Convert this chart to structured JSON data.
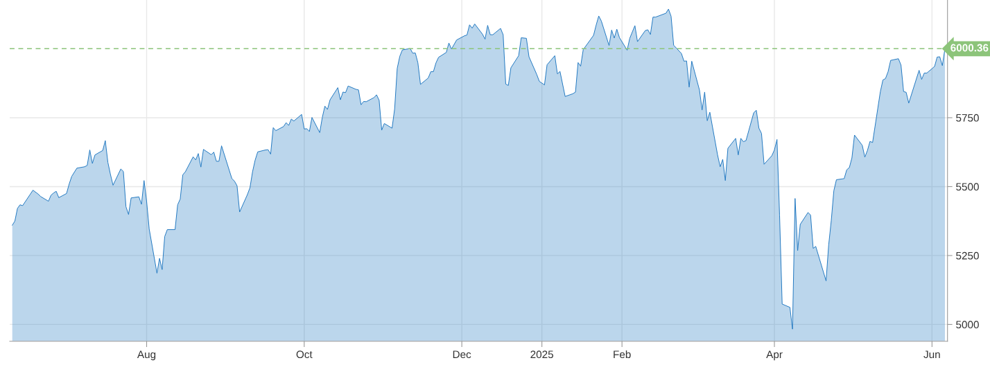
{
  "chart_data": {
    "type": "area",
    "x": [
      "2024-06-10",
      "2024-06-11",
      "2024-06-12",
      "2024-06-13",
      "2024-06-14",
      "2024-06-17",
      "2024-06-18",
      "2024-06-20",
      "2024-06-21",
      "2024-06-24",
      "2024-06-25",
      "2024-06-26",
      "2024-06-27",
      "2024-06-28",
      "2024-07-01",
      "2024-07-02",
      "2024-07-03",
      "2024-07-05",
      "2024-07-08",
      "2024-07-09",
      "2024-07-10",
      "2024-07-11",
      "2024-07-12",
      "2024-07-15",
      "2024-07-16",
      "2024-07-17",
      "2024-07-18",
      "2024-07-19",
      "2024-07-22",
      "2024-07-23",
      "2024-07-24",
      "2024-07-25",
      "2024-07-26",
      "2024-07-29",
      "2024-07-30",
      "2024-07-31",
      "2024-08-01",
      "2024-08-02",
      "2024-08-05",
      "2024-08-06",
      "2024-08-07",
      "2024-08-08",
      "2024-08-09",
      "2024-08-12",
      "2024-08-13",
      "2024-08-14",
      "2024-08-15",
      "2024-08-16",
      "2024-08-19",
      "2024-08-20",
      "2024-08-21",
      "2024-08-22",
      "2024-08-23",
      "2024-08-26",
      "2024-08-27",
      "2024-08-28",
      "2024-08-29",
      "2024-08-30",
      "2024-09-03",
      "2024-09-04",
      "2024-09-05",
      "2024-09-06",
      "2024-09-09",
      "2024-09-10",
      "2024-09-11",
      "2024-09-12",
      "2024-09-13",
      "2024-09-16",
      "2024-09-17",
      "2024-09-18",
      "2024-09-19",
      "2024-09-20",
      "2024-09-23",
      "2024-09-24",
      "2024-09-25",
      "2024-09-26",
      "2024-09-27",
      "2024-09-30",
      "2024-10-01",
      "2024-10-02",
      "2024-10-03",
      "2024-10-04",
      "2024-10-07",
      "2024-10-08",
      "2024-10-09",
      "2024-10-10",
      "2024-10-11",
      "2024-10-14",
      "2024-10-15",
      "2024-10-16",
      "2024-10-17",
      "2024-10-18",
      "2024-10-21",
      "2024-10-22",
      "2024-10-23",
      "2024-10-24",
      "2024-10-25",
      "2024-10-28",
      "2024-10-29",
      "2024-10-30",
      "2024-10-31",
      "2024-11-01",
      "2024-11-04",
      "2024-11-05",
      "2024-11-06",
      "2024-11-07",
      "2024-11-08",
      "2024-11-11",
      "2024-11-12",
      "2024-11-13",
      "2024-11-14",
      "2024-11-15",
      "2024-11-18",
      "2024-11-19",
      "2024-11-20",
      "2024-11-21",
      "2024-11-22",
      "2024-11-25",
      "2024-11-26",
      "2024-11-27",
      "2024-11-29",
      "2024-12-02",
      "2024-12-03",
      "2024-12-04",
      "2024-12-05",
      "2024-12-06",
      "2024-12-09",
      "2024-12-10",
      "2024-12-11",
      "2024-12-12",
      "2024-12-13",
      "2024-12-16",
      "2024-12-17",
      "2024-12-18",
      "2024-12-19",
      "2024-12-20",
      "2024-12-23",
      "2024-12-24",
      "2024-12-26",
      "2024-12-27",
      "2024-12-30",
      "2024-12-31",
      "2025-01-02",
      "2025-01-03",
      "2025-01-06",
      "2025-01-07",
      "2025-01-08",
      "2025-01-10",
      "2025-01-13",
      "2025-01-14",
      "2025-01-15",
      "2025-01-16",
      "2025-01-17",
      "2025-01-21",
      "2025-01-22",
      "2025-01-23",
      "2025-01-24",
      "2025-01-27",
      "2025-01-28",
      "2025-01-29",
      "2025-01-30",
      "2025-01-31",
      "2025-02-03",
      "2025-02-04",
      "2025-02-05",
      "2025-02-06",
      "2025-02-07",
      "2025-02-10",
      "2025-02-11",
      "2025-02-12",
      "2025-02-13",
      "2025-02-14",
      "2025-02-18",
      "2025-02-19",
      "2025-02-20",
      "2025-02-21",
      "2025-02-24",
      "2025-02-25",
      "2025-02-26",
      "2025-02-27",
      "2025-02-28",
      "2025-03-03",
      "2025-03-04",
      "2025-03-05",
      "2025-03-06",
      "2025-03-07",
      "2025-03-10",
      "2025-03-11",
      "2025-03-12",
      "2025-03-13",
      "2025-03-14",
      "2025-03-17",
      "2025-03-18",
      "2025-03-19",
      "2025-03-20",
      "2025-03-21",
      "2025-03-24",
      "2025-03-25",
      "2025-03-26",
      "2025-03-27",
      "2025-03-28",
      "2025-03-31",
      "2025-04-01",
      "2025-04-02",
      "2025-04-03",
      "2025-04-04",
      "2025-04-07",
      "2025-04-08",
      "2025-04-09",
      "2025-04-10",
      "2025-04-11",
      "2025-04-14",
      "2025-04-15",
      "2025-04-16",
      "2025-04-17",
      "2025-04-21",
      "2025-04-22",
      "2025-04-23",
      "2025-04-24",
      "2025-04-25",
      "2025-04-28",
      "2025-04-29",
      "2025-04-30",
      "2025-05-01",
      "2025-05-02",
      "2025-05-05",
      "2025-05-06",
      "2025-05-07",
      "2025-05-08",
      "2025-05-09",
      "2025-05-12",
      "2025-05-13",
      "2025-05-14",
      "2025-05-15",
      "2025-05-16",
      "2025-05-19",
      "2025-05-20",
      "2025-05-21",
      "2025-05-22",
      "2025-05-23",
      "2025-05-27",
      "2025-05-28",
      "2025-05-29",
      "2025-05-30",
      "2025-06-02",
      "2025-06-03",
      "2025-06-04",
      "2025-06-05",
      "2025-06-06"
    ],
    "series": [
      {
        "color": "#1f77c0",
        "values": [
          5360,
          5375,
          5421,
          5434,
          5431,
          5473,
          5487,
          5473,
          5464,
          5447,
          5469,
          5477,
          5483,
          5460,
          5475,
          5509,
          5537,
          5567,
          5572,
          5577,
          5633,
          5584,
          5615,
          5631,
          5667,
          5588,
          5544,
          5505,
          5564,
          5555,
          5427,
          5399,
          5459,
          5463,
          5436,
          5522,
          5446,
          5346,
          5186,
          5240,
          5199,
          5319,
          5344,
          5344,
          5434,
          5455,
          5543,
          5554,
          5608,
          5597,
          5620,
          5571,
          5635,
          5616,
          5625,
          5592,
          5592,
          5648,
          5529,
          5520,
          5503,
          5408,
          5471,
          5496,
          5554,
          5596,
          5626,
          5633,
          5634,
          5618,
          5714,
          5703,
          5718,
          5732,
          5722,
          5745,
          5738,
          5762,
          5709,
          5710,
          5700,
          5751,
          5696,
          5751,
          5792,
          5780,
          5815,
          5859,
          5815,
          5843,
          5841,
          5865,
          5853,
          5851,
          5797,
          5809,
          5808,
          5823,
          5833,
          5813,
          5705,
          5729,
          5712,
          5782,
          5929,
          5973,
          5996,
          6001,
          5984,
          5985,
          5949,
          5871,
          5894,
          5917,
          5917,
          5949,
          5969,
          5987,
          6021,
          5999,
          6032,
          6047,
          6050,
          6087,
          6075,
          6090,
          6053,
          6035,
          6085,
          6051,
          6051,
          6074,
          6051,
          5872,
          5867,
          5931,
          5975,
          6040,
          6038,
          5971,
          5907,
          5882,
          5869,
          5942,
          5975,
          5909,
          5918,
          5827,
          5837,
          5843,
          5950,
          5937,
          5997,
          6049,
          6086,
          6119,
          6101,
          6012,
          6068,
          6039,
          6071,
          6041,
          5995,
          6038,
          6061,
          6084,
          6026,
          6066,
          6069,
          6052,
          6115,
          6115,
          6129,
          6144,
          6118,
          6013,
          5983,
          5955,
          5956,
          5861,
          5955,
          5850,
          5778,
          5843,
          5739,
          5770,
          5615,
          5572,
          5599,
          5522,
          5639,
          5675,
          5615,
          5675,
          5663,
          5667,
          5768,
          5777,
          5712,
          5693,
          5581,
          5612,
          5633,
          5671,
          5397,
          5074,
          5062,
          4983,
          5457,
          5268,
          5363,
          5406,
          5397,
          5276,
          5283,
          5158,
          5288,
          5376,
          5485,
          5525,
          5529,
          5561,
          5569,
          5604,
          5687,
          5650,
          5607,
          5631,
          5664,
          5660,
          5844,
          5887,
          5892,
          5917,
          5958,
          5964,
          5941,
          5845,
          5842,
          5803,
          5922,
          5889,
          5912,
          5912,
          5936,
          5970,
          5971,
          5939,
          6000.36
        ]
      }
    ],
    "xlim": [
      "2024-06-09",
      "2025-06-07"
    ],
    "xticks": [
      {
        "value": "2024-08-01",
        "label": "Aug"
      },
      {
        "value": "2024-10-01",
        "label": "Oct"
      },
      {
        "value": "2024-12-01",
        "label": "Dec"
      },
      {
        "value": "2025-01-01",
        "label": "2025"
      },
      {
        "value": "2025-02-01",
        "label": "Feb"
      },
      {
        "value": "2025-04-01",
        "label": "Apr"
      },
      {
        "value": "2025-06-01",
        "label": "Jun"
      }
    ],
    "ylim": [
      4939,
      6177
    ],
    "yticks": [
      5000,
      5250,
      5500,
      5750
    ],
    "ref_lines": [
      {
        "axis": "y",
        "value": 6000.36,
        "label": "6000.36",
        "color": "#8cc47a",
        "line_style": "dashed"
      }
    ],
    "grid": true
  }
}
